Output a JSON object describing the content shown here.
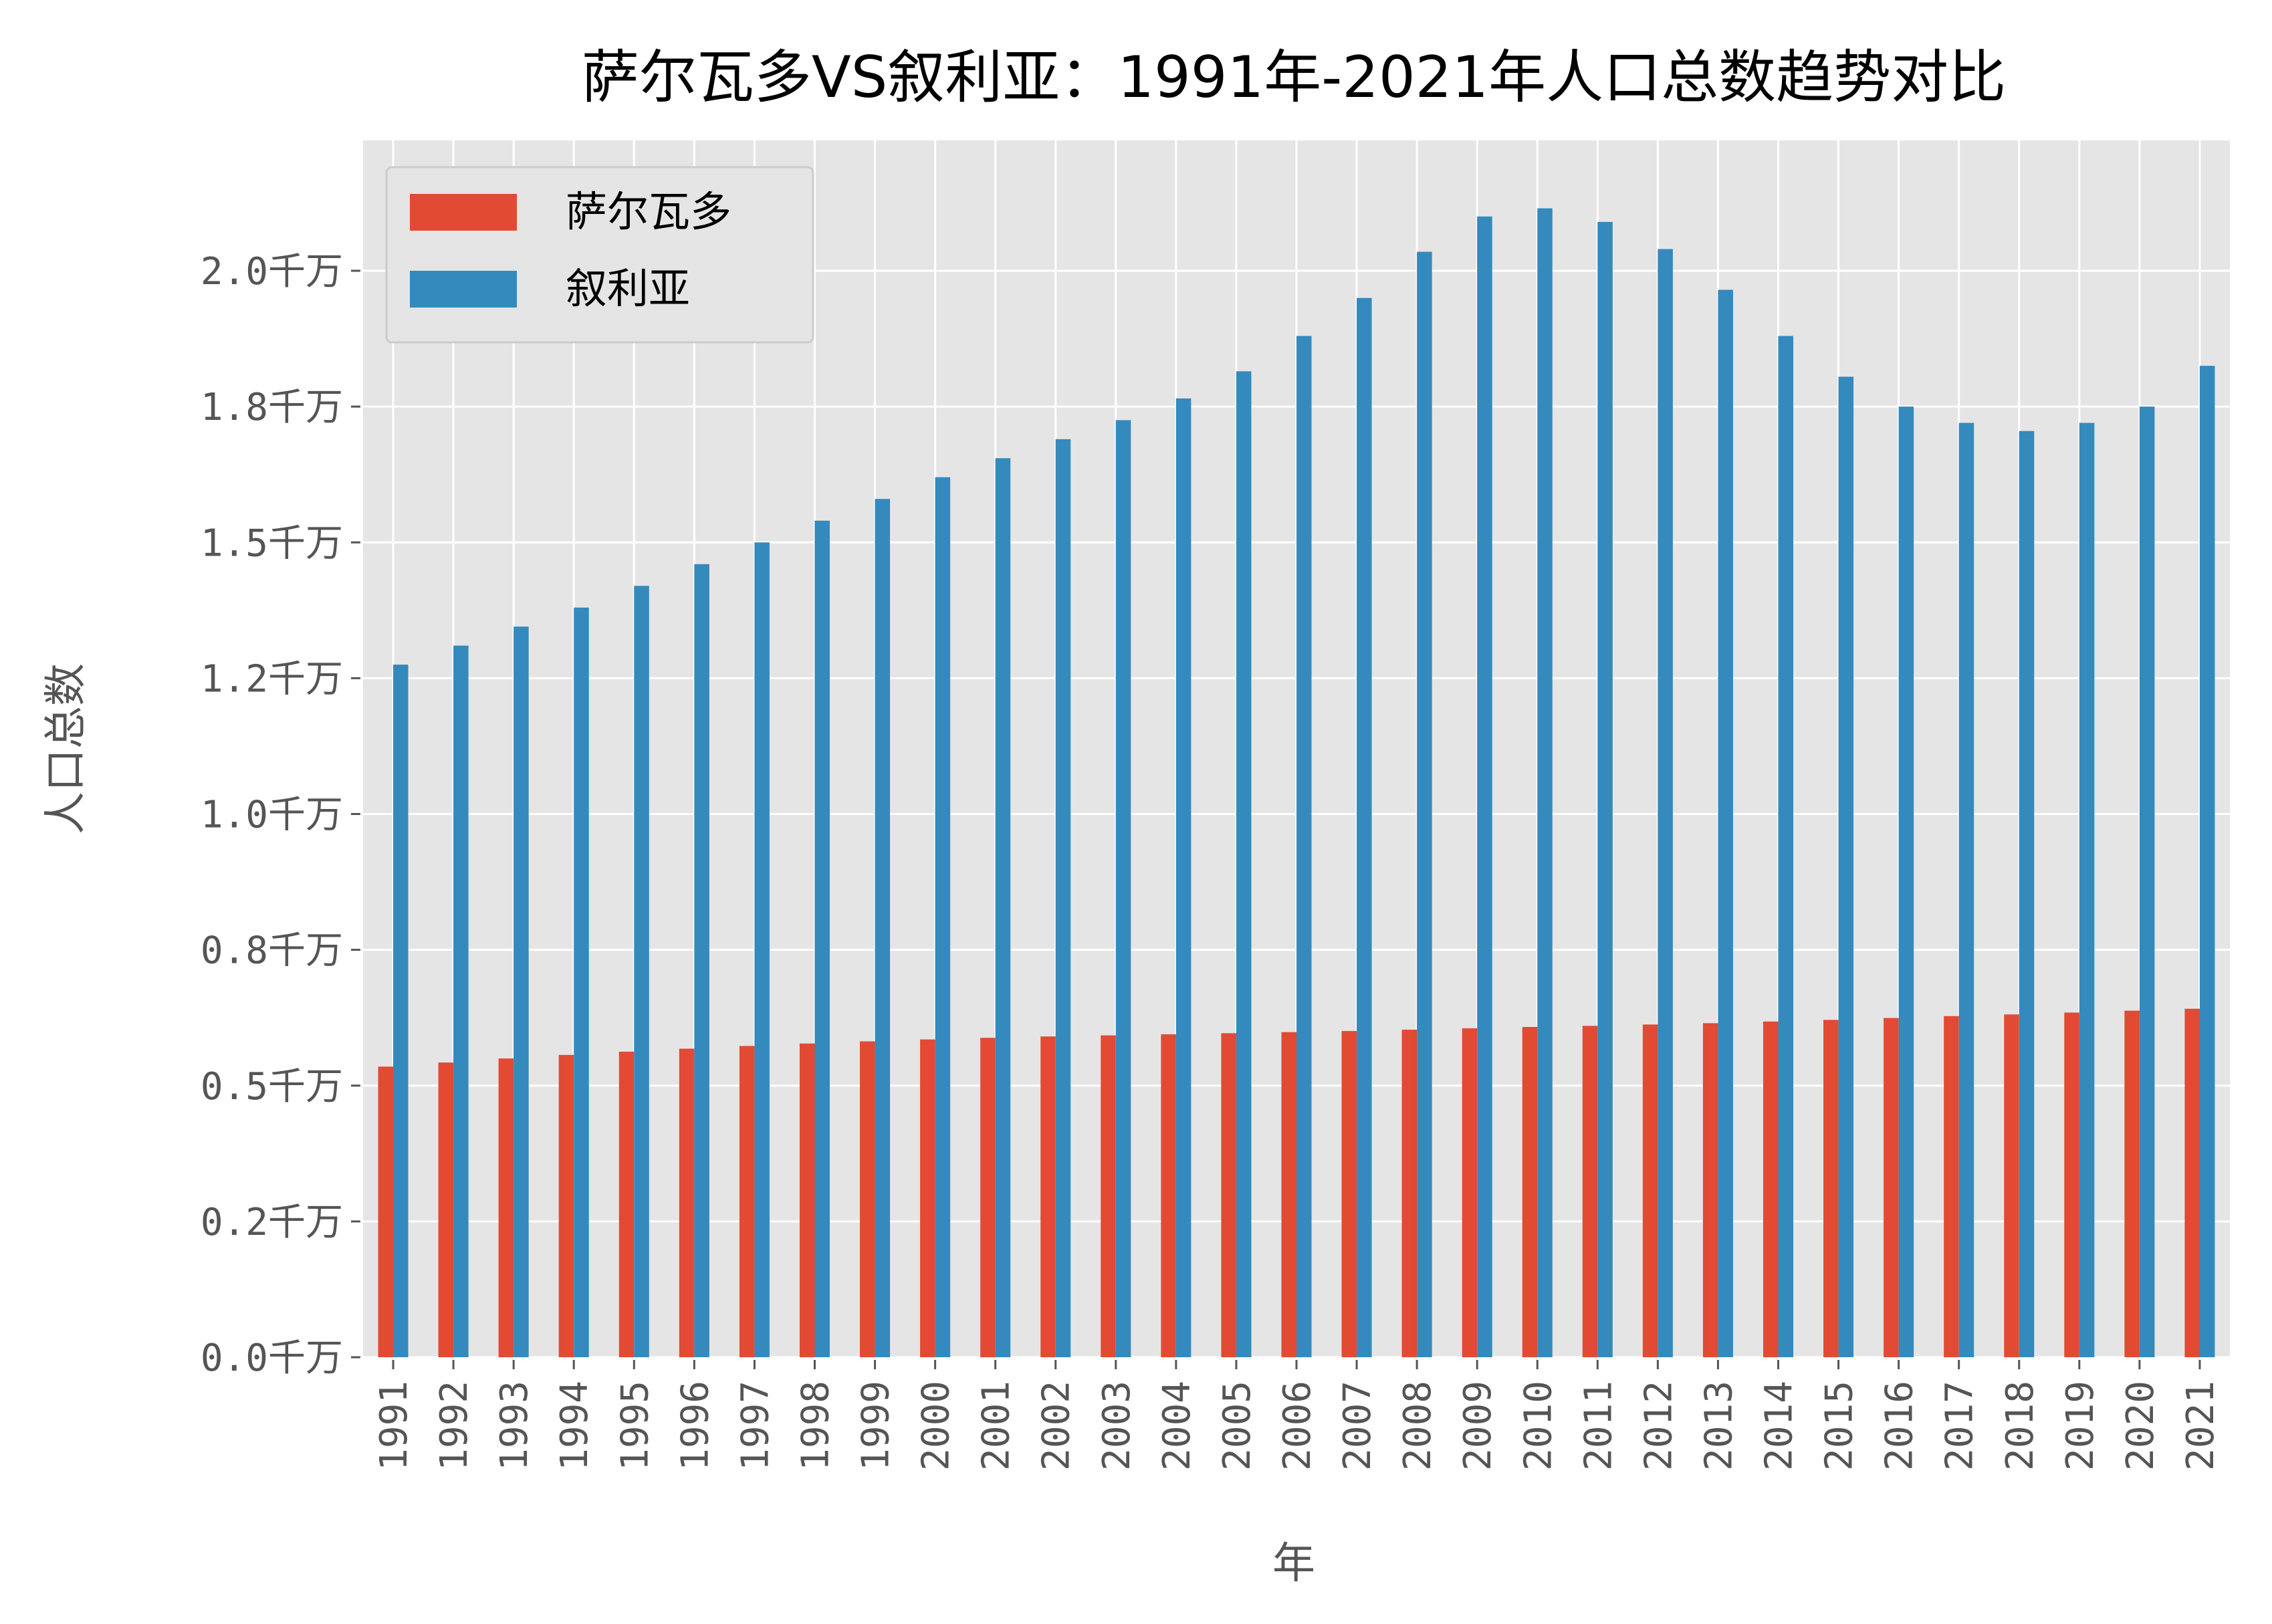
{
  "chart_data": {
    "type": "bar",
    "title": "萨尔瓦多VS叙利亚：1991年-2021年人口总数趋势对比",
    "xlabel": "年",
    "ylabel": "人口总数",
    "categories": [
      "1991",
      "1992",
      "1993",
      "1994",
      "1995",
      "1996",
      "1997",
      "1998",
      "1999",
      "2000",
      "2001",
      "2002",
      "2003",
      "2004",
      "2005",
      "2006",
      "2007",
      "2008",
      "2009",
      "2010",
      "2011",
      "2012",
      "2013",
      "2014",
      "2015",
      "2016",
      "2017",
      "2018",
      "2019",
      "2020",
      "2021"
    ],
    "series": [
      {
        "name": "萨尔瓦多",
        "color": "#E24A33",
        "values": [
          5350000,
          5425000,
          5500000,
          5565000,
          5625000,
          5680000,
          5730000,
          5775000,
          5815000,
          5850000,
          5880000,
          5905000,
          5925000,
          5945000,
          5965000,
          5985000,
          6005000,
          6030000,
          6055000,
          6080000,
          6100000,
          6125000,
          6150000,
          6180000,
          6210000,
          6245000,
          6280000,
          6310000,
          6345000,
          6380000,
          6415000
        ]
      },
      {
        "name": "叙利亚",
        "color": "#348ABD",
        "values": [
          12750000,
          13100000,
          13450000,
          13800000,
          14200000,
          14600000,
          15000000,
          15400000,
          15800000,
          16200000,
          16550000,
          16900000,
          17250000,
          17650000,
          18150000,
          18800000,
          19500000,
          20350000,
          21000000,
          21150000,
          20900000,
          20400000,
          19650000,
          18800000,
          18050000,
          17500000,
          17200000,
          17050000,
          17200000,
          17500000,
          18250000
        ]
      }
    ],
    "y_ticks": [
      0,
      2500000,
      5000000,
      7500000,
      10000000,
      12500000,
      15000000,
      17500000,
      20000000
    ],
    "y_tick_labels": [
      "0.0千万",
      "0.2千万",
      "0.5千万",
      "0.8千万",
      "1.0千万",
      "1.2千万",
      "1.5千万",
      "1.8千万",
      "2.0千万"
    ],
    "ylim": [
      0,
      22400000
    ],
    "grid": true,
    "legend_position": "top-left",
    "background_color": "#E5E5E5",
    "grid_color": "#FFFFFF"
  }
}
